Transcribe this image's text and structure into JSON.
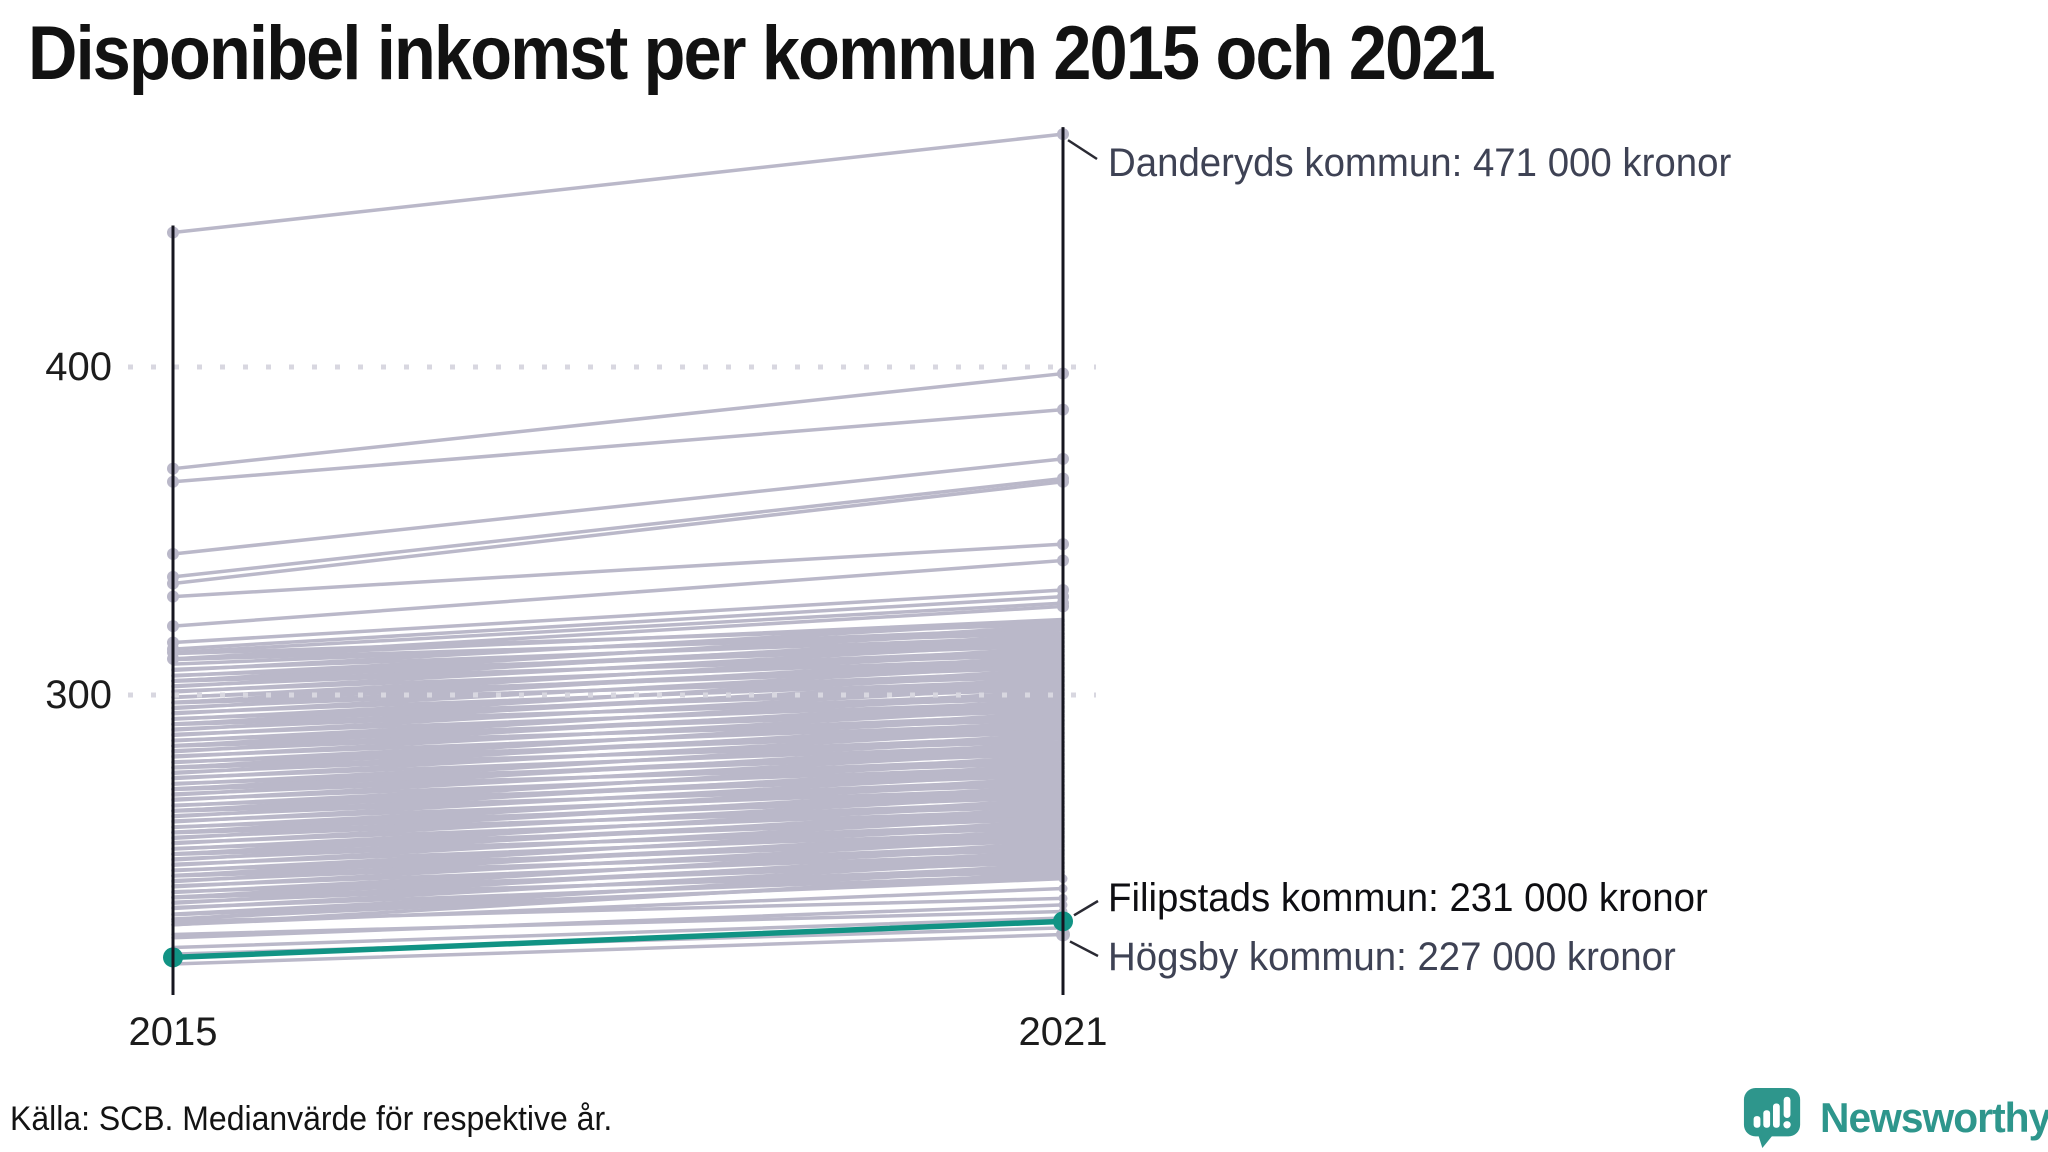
{
  "title": "Disponibel inkomst per kommun 2015 och 2021",
  "source_note": "Källa: SCB. Medianvärde för respektive år.",
  "logo": {
    "name": "Newsworthy",
    "icon": "newsworthy-speech-bubble-chart-icon"
  },
  "colors": {
    "background": "#ffffff",
    "line_gray": "#bab8c9",
    "highlight_teal": "#119384",
    "grid": "#d8d7e0",
    "axis": "#15151f",
    "text_dark": "#121212",
    "text_slate": "#3e4254",
    "connector": "#2a2a33",
    "logo_teal": "#2e968c"
  },
  "chart_data": {
    "type": "line",
    "subtype": "slope-chart",
    "x": [
      2015,
      2021
    ],
    "xlabel": "",
    "ylabel": "",
    "unit": "tusen kronor (1 000 kronor)",
    "yticks": [
      400,
      300
    ],
    "xtick_labels": [
      "2015",
      "2021"
    ],
    "ylim": [
      205,
      480
    ],
    "grid": "dotted-horizontal",
    "annotations": [
      {
        "name": "Danderyds kommun",
        "label": "Danderyds kommun: 471 000 kronor",
        "v2015": 441,
        "v2021": 471,
        "highlighted": false
      },
      {
        "name": "Filipstads kommun",
        "label": "Filipstads kommun: 231 000 kronor",
        "v2015": 220,
        "v2021": 231,
        "highlighted": true
      },
      {
        "name": "Högsby kommun",
        "label": "Högsby kommun: 227 000 kronor",
        "v2015": 218,
        "v2021": 227,
        "highlighted": false
      }
    ],
    "outlier_lines": [
      [
        441,
        471
      ],
      [
        369,
        398
      ],
      [
        365,
        387
      ],
      [
        343,
        372
      ],
      [
        336,
        366
      ],
      [
        334,
        365
      ],
      [
        330,
        346
      ],
      [
        321,
        341
      ],
      [
        316,
        332
      ],
      [
        314,
        330
      ],
      [
        313,
        328
      ],
      [
        311,
        327
      ]
    ],
    "bundle_lines": [
      [
        311,
        323
      ],
      [
        307.5,
        322.5
      ],
      [
        312.6,
        321.6
      ],
      [
        304.2,
        321.2
      ],
      [
        309.4,
        320.4
      ],
      [
        305.8,
        319.8
      ],
      [
        310.8,
        318.8
      ],
      [
        302.5,
        318.5
      ],
      [
        307.8,
        317.8
      ],
      [
        304.3,
        317.3
      ],
      [
        304.4,
        316.4
      ],
      [
        300.9,
        315.9
      ],
      [
        306,
        315
      ],
      [
        297.6,
        314.6
      ],
      [
        302.8,
        313.8
      ],
      [
        299.2,
        313.2
      ],
      [
        304.2,
        312.2
      ],
      [
        295.9,
        311.9
      ],
      [
        301.2,
        311.2
      ],
      [
        297.7,
        310.7
      ],
      [
        297.8,
        309.8
      ],
      [
        294.3,
        309.3
      ],
      [
        299.4,
        308.4
      ],
      [
        291,
        308
      ],
      [
        296.2,
        307.2
      ],
      [
        292.6,
        306.6
      ],
      [
        297.6,
        305.6
      ],
      [
        289.3,
        305.3
      ],
      [
        294.6,
        304.6
      ],
      [
        291.1,
        304.1
      ],
      [
        291.2,
        303.2
      ],
      [
        287.7,
        302.7
      ],
      [
        292.8,
        301.8
      ],
      [
        284.4,
        301.4
      ],
      [
        289.6,
        300.6
      ],
      [
        286,
        300
      ],
      [
        291,
        299
      ],
      [
        282.7,
        298.7
      ],
      [
        288,
        298
      ],
      [
        284.5,
        297.5
      ],
      [
        284.6,
        296.6
      ],
      [
        281.1,
        296.1
      ],
      [
        286.2,
        295.2
      ],
      [
        277.8,
        294.8
      ],
      [
        283,
        294
      ],
      [
        279.4,
        293.4
      ],
      [
        284.4,
        292.4
      ],
      [
        276.1,
        292.1
      ],
      [
        281.4,
        291.4
      ],
      [
        277.9,
        290.9
      ],
      [
        278,
        290
      ],
      [
        274.5,
        289.5
      ],
      [
        279.6,
        288.6
      ],
      [
        271.2,
        288.2
      ],
      [
        276.4,
        287.4
      ],
      [
        272.8,
        286.8
      ],
      [
        277.8,
        285.8
      ],
      [
        269.5,
        285.5
      ],
      [
        274.8,
        284.8
      ],
      [
        271.3,
        284.3
      ],
      [
        271.4,
        283.4
      ],
      [
        267.9,
        282.9
      ],
      [
        273,
        282
      ],
      [
        264.6,
        281.6
      ],
      [
        269.8,
        280.8
      ],
      [
        266.2,
        280.2
      ],
      [
        271.2,
        279.2
      ],
      [
        262.9,
        278.9
      ],
      [
        268.2,
        278.2
      ],
      [
        264.7,
        277.7
      ],
      [
        264.8,
        276.8
      ],
      [
        261.3,
        276.3
      ],
      [
        266.4,
        275.4
      ],
      [
        258,
        275
      ],
      [
        263.2,
        274.2
      ],
      [
        259.6,
        273.6
      ],
      [
        264.6,
        272.6
      ],
      [
        256.3,
        272.3
      ],
      [
        261.6,
        271.6
      ],
      [
        258.1,
        271.1
      ],
      [
        258.2,
        270.2
      ],
      [
        254.7,
        269.7
      ],
      [
        259.8,
        268.8
      ],
      [
        251.4,
        268.4
      ],
      [
        256.6,
        267.6
      ],
      [
        253,
        267
      ],
      [
        258,
        266
      ],
      [
        249.7,
        265.7
      ],
      [
        255,
        265
      ],
      [
        251.5,
        264.5
      ],
      [
        251.6,
        263.6
      ],
      [
        248.1,
        263.1
      ],
      [
        253.2,
        262.2
      ],
      [
        244.8,
        261.8
      ],
      [
        250,
        261
      ],
      [
        246.4,
        260.4
      ],
      [
        251.4,
        259.4
      ],
      [
        243.1,
        259.1
      ],
      [
        248.4,
        258.4
      ],
      [
        244.9,
        257.9
      ],
      [
        245,
        257
      ],
      [
        241.5,
        256.5
      ],
      [
        246.6,
        255.6
      ],
      [
        238.2,
        255.2
      ],
      [
        243.4,
        254.4
      ],
      [
        239.8,
        253.8
      ],
      [
        244.8,
        252.8
      ],
      [
        236.5,
        252.5
      ],
      [
        241.8,
        251.8
      ],
      [
        238.3,
        251.3
      ],
      [
        238.4,
        250.4
      ],
      [
        234.9,
        249.9
      ],
      [
        240,
        249
      ],
      [
        231.6,
        248.6
      ],
      [
        236.8,
        247.8
      ],
      [
        233.2,
        247.2
      ],
      [
        238.2,
        246.2
      ],
      [
        229.9,
        245.9
      ],
      [
        235.2,
        245.2
      ],
      [
        231.7,
        244.7
      ]
    ],
    "tail_lines": [
      [
        233,
        244
      ],
      [
        230,
        241
      ],
      [
        231,
        238
      ],
      [
        226,
        236
      ],
      [
        227,
        234
      ],
      [
        223,
        232
      ],
      [
        221,
        229
      ]
    ]
  }
}
